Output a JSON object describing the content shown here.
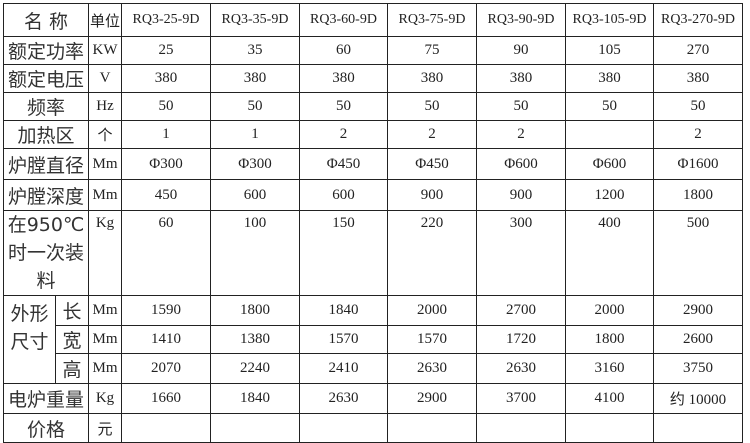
{
  "header": {
    "name": "名  称",
    "unit": "单位",
    "models": [
      "RQ3-25-9D",
      "RQ3-35-9D",
      "RQ3-60-9D",
      "RQ3-75-9D",
      "RQ3-90-9D",
      "RQ3-105-9D",
      "RQ3-270-9D"
    ]
  },
  "rows": [
    {
      "label": "额定功率",
      "unit": "KW",
      "values": [
        "25",
        "35",
        "60",
        "75",
        "90",
        "105",
        "270"
      ]
    },
    {
      "label": "额定电压",
      "unit": "V",
      "values": [
        "380",
        "380",
        "380",
        "380",
        "380",
        "380",
        "380"
      ]
    },
    {
      "label": "频率",
      "unit": "Hz",
      "values": [
        "50",
        "50",
        "50",
        "50",
        "50",
        "50",
        "50"
      ]
    },
    {
      "label": "加热区",
      "unit": "个",
      "values": [
        "1",
        "1",
        "2",
        "2",
        "2",
        "",
        "2"
      ]
    },
    {
      "label": "炉膛直径",
      "unit": "Mm",
      "values": [
        "Φ300",
        "Φ300",
        "Φ450",
        "Φ450",
        "Φ600",
        "Φ600",
        "Φ1600"
      ]
    },
    {
      "label": "炉膛深度",
      "unit": "Mm",
      "values": [
        "450",
        "600",
        "600",
        "900",
        "900",
        "1200",
        "1800"
      ]
    },
    {
      "label": "在950℃时一次装料",
      "unit": "Kg",
      "values": [
        "60",
        "100",
        "150",
        "220",
        "300",
        "400",
        "500"
      ]
    }
  ],
  "dimensions": {
    "label": "外形尺寸",
    "rows": [
      {
        "label": "长",
        "unit": "Mm",
        "values": [
          "1590",
          "1800",
          "1840",
          "2000",
          "2700",
          "2000",
          "2900"
        ]
      },
      {
        "label": "宽",
        "unit": "Mm",
        "values": [
          "1410",
          "1380",
          "1570",
          "1570",
          "1720",
          "1800",
          "2600"
        ]
      },
      {
        "label": "高",
        "unit": "Mm",
        "values": [
          "2070",
          "2240",
          "2410",
          "2630",
          "2630",
          "3160",
          "3750"
        ]
      }
    ]
  },
  "weight": {
    "label": "电炉重量",
    "unit": "Kg",
    "values": [
      "1660",
      "1840",
      "2630",
      "2900",
      "3700",
      "4100",
      "约 10000"
    ]
  },
  "price": {
    "label": "价格",
    "unit": "元",
    "values": [
      "",
      "",
      "",
      "",
      "",
      "",
      ""
    ]
  }
}
